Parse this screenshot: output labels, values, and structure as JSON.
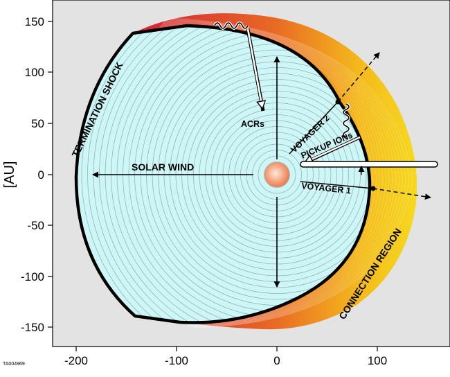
{
  "axes": {
    "y_title": "[AU]",
    "x_ticks": [
      "-200",
      "-100",
      "0",
      "100"
    ],
    "y_ticks": [
      "150",
      "100",
      "50",
      "0",
      "-50",
      "-100",
      "-150"
    ]
  },
  "labels": {
    "termination_shock": "TERMINATION SHOCK",
    "solar_wind": "SOLAR WIND",
    "acrs": "ACRs",
    "voyager2": "VOYAGER 2",
    "pickup_ions": "PICKUP IONs",
    "voyager1": "VOYAGER 1",
    "connection_region": "CONNECTION REGION"
  },
  "figure_id": "TA004969",
  "colors": {
    "background": "#e3e3e3",
    "plasma": "#cff6f7",
    "sheath_outer": "#f5d21e",
    "sheath_inner": "#d11f37",
    "sun": "#f3a07c"
  }
}
